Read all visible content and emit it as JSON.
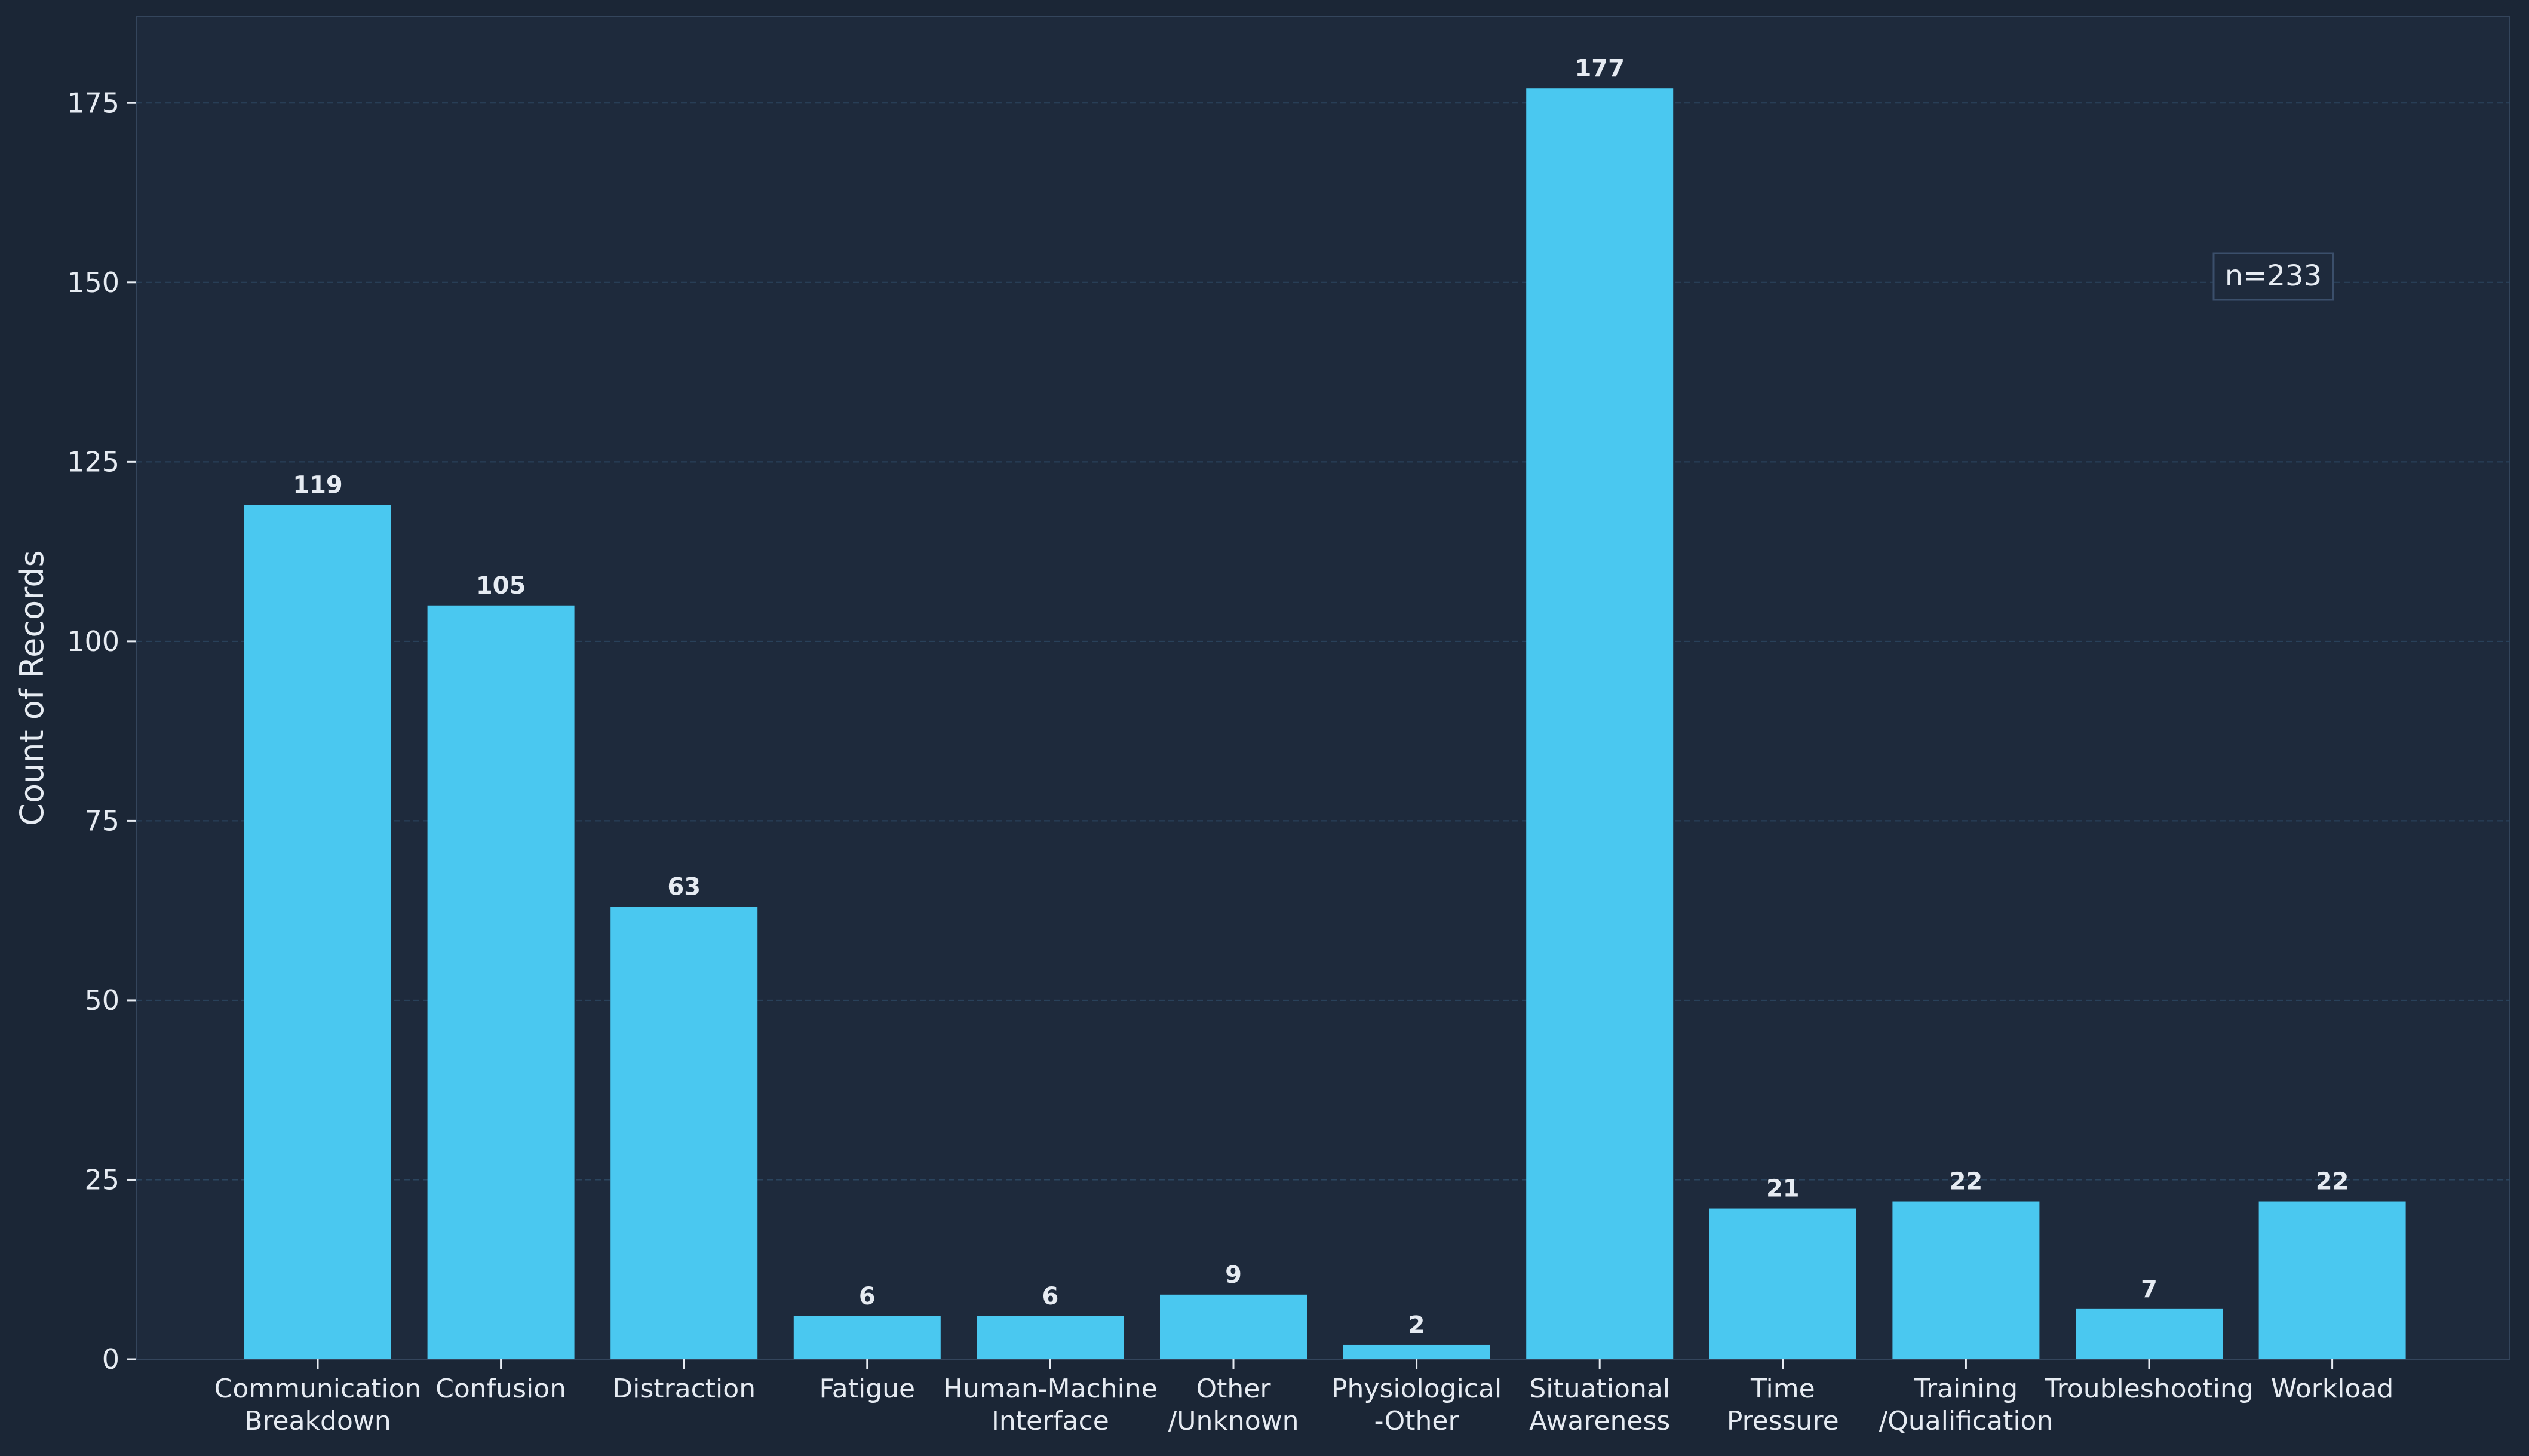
{
  "chart_data": {
    "type": "bar",
    "title": "",
    "xlabel": "",
    "ylabel": "Count of Records",
    "categories": [
      [
        "Communication",
        "Breakdown"
      ],
      [
        "Confusion"
      ],
      [
        "Distraction"
      ],
      [
        "Fatigue"
      ],
      [
        "Human-Machine",
        "Interface"
      ],
      [
        "Other",
        "/Unknown"
      ],
      [
        "Physiological",
        "-Other"
      ],
      [
        "Situational",
        "Awareness"
      ],
      [
        "Time",
        "Pressure"
      ],
      [
        "Training",
        "/Qualification"
      ],
      [
        "Troubleshooting"
      ],
      [
        "Workload"
      ]
    ],
    "values": [
      119,
      105,
      63,
      6,
      6,
      9,
      2,
      177,
      21,
      22,
      7,
      22
    ],
    "ylim": [
      0,
      187
    ],
    "yticks": [
      0,
      25,
      50,
      75,
      100,
      125,
      150,
      175
    ],
    "grid": "horizontal-dashed",
    "annotation": "n=233",
    "colors": {
      "background": "#1b2636",
      "plot_background": "#1e2a3c",
      "bar": "#4ac8f0",
      "text": "#e6ebf2",
      "grid": "#2e4a66",
      "spine": "#34455c"
    }
  }
}
